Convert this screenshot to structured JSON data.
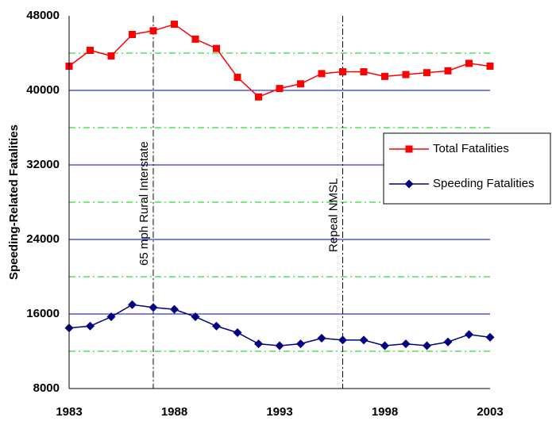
{
  "chart_data": {
    "type": "line",
    "y_label": "Speeding-Related Fatalities",
    "x": [
      1983,
      1984,
      1985,
      1986,
      1987,
      1988,
      1989,
      1990,
      1991,
      1992,
      1993,
      1994,
      1995,
      1996,
      1997,
      1998,
      1999,
      2000,
      2001,
      2002,
      2003
    ],
    "series": [
      {
        "name": "Total Fatalities",
        "color": "#ff0000",
        "marker": "square",
        "values": [
          42600,
          44300,
          43700,
          46000,
          46400,
          47100,
          45500,
          44500,
          41400,
          39300,
          40200,
          40700,
          41800,
          42000,
          42000,
          41500,
          41700,
          41900,
          42100,
          42900,
          42600
        ]
      },
      {
        "name": "Speeding Fatalities",
        "color": "#000080",
        "marker": "diamond",
        "values": [
          14500,
          14700,
          15700,
          17000,
          16700,
          16500,
          15700,
          14700,
          14000,
          12800,
          12600,
          12800,
          13400,
          13200,
          13200,
          12600,
          12800,
          12600,
          13000,
          13800,
          13500
        ]
      }
    ],
    "xlim": [
      1983,
      2003
    ],
    "xticks": [
      1983,
      1988,
      1993,
      1998,
      2003
    ],
    "ylim": [
      8000,
      48000
    ],
    "yticks": [
      8000,
      16000,
      24000,
      32000,
      40000,
      48000
    ],
    "grid": true,
    "minor_grid": [
      12000,
      20000,
      28000,
      36000,
      44000
    ],
    "annotations": [
      {
        "text": "65 mph Rural Interstate",
        "x": 1987
      },
      {
        "text": "Repeal NMSL",
        "x": 1996
      }
    ],
    "legend": "right"
  }
}
